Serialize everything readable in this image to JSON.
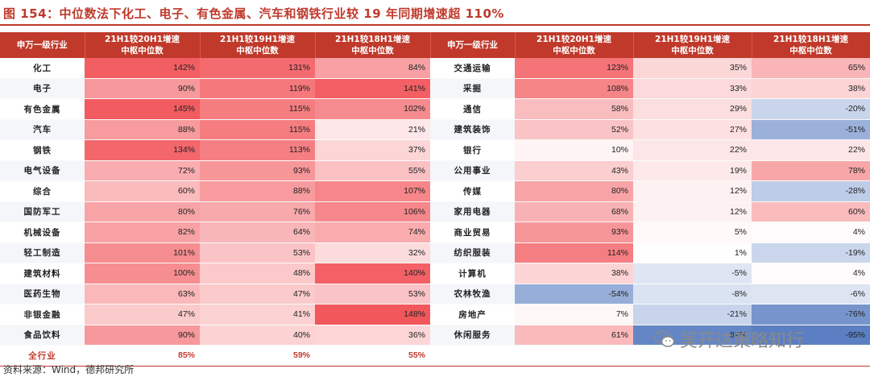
{
  "title": "图 154：中位数法下化工、电子、有色金属、汽车和钢铁行业较 19 年同期增速超 110%",
  "source": "资料来源：Wind，德邦研究所",
  "watermark": "吴开达策略知行",
  "headers": {
    "industry": "申万一级行业",
    "c1": [
      "21H1较20H1增速",
      "中枢中位数"
    ],
    "c2": [
      "21H1较19H1增速",
      "中枢中位数"
    ],
    "c3": [
      "21H1较18H1增速",
      "中枢中位数"
    ]
  },
  "colors": {
    "accent": "#c0392b",
    "positive": "#f2555a",
    "negative": "#5b7fc2"
  },
  "chart_data": {
    "type": "table",
    "columns": [
      "申万一级行业",
      "21H1较20H1增速中枢中位数",
      "21H1较19H1增速中枢中位数",
      "21H1较18H1增速中枢中位数"
    ],
    "left": [
      [
        "化工",
        "142%",
        "131%",
        "84%"
      ],
      [
        "电子",
        "90%",
        "119%",
        "141%"
      ],
      [
        "有色金属",
        "145%",
        "115%",
        "102%"
      ],
      [
        "汽车",
        "88%",
        "115%",
        "21%"
      ],
      [
        "钢铁",
        "134%",
        "113%",
        "37%"
      ],
      [
        "电气设备",
        "72%",
        "93%",
        "55%"
      ],
      [
        "综合",
        "60%",
        "88%",
        "107%"
      ],
      [
        "国防军工",
        "80%",
        "76%",
        "106%"
      ],
      [
        "机械设备",
        "82%",
        "64%",
        "74%"
      ],
      [
        "轻工制造",
        "101%",
        "53%",
        "32%"
      ],
      [
        "建筑材料",
        "100%",
        "48%",
        "140%"
      ],
      [
        "医药生物",
        "63%",
        "47%",
        "53%"
      ],
      [
        "非银金融",
        "47%",
        "41%",
        "148%"
      ],
      [
        "食品饮料",
        "90%",
        "40%",
        "36%"
      ]
    ],
    "right": [
      [
        "交通运输",
        "123%",
        "35%",
        "65%"
      ],
      [
        "采掘",
        "108%",
        "33%",
        "38%"
      ],
      [
        "通信",
        "58%",
        "29%",
        "-20%"
      ],
      [
        "建筑装饰",
        "52%",
        "27%",
        "-51%"
      ],
      [
        "银行",
        "10%",
        "22%",
        "22%"
      ],
      [
        "公用事业",
        "43%",
        "19%",
        "78%"
      ],
      [
        "传媒",
        "80%",
        "12%",
        "-28%"
      ],
      [
        "家用电器",
        "68%",
        "12%",
        "60%"
      ],
      [
        "商业贸易",
        "93%",
        "5%",
        "4%"
      ],
      [
        "纺织服装",
        "114%",
        "1%",
        "-19%"
      ],
      [
        "计算机",
        "38%",
        "-5%",
        "4%"
      ],
      [
        "农林牧渔",
        "-54%",
        "-8%",
        "-6%"
      ],
      [
        "房地产",
        "7%",
        "-21%",
        "-76%"
      ],
      [
        "休闲服务",
        "61%",
        "-89%",
        "-95%"
      ]
    ],
    "total": [
      "全行业",
      "85%",
      "59%",
      "55%"
    ]
  }
}
